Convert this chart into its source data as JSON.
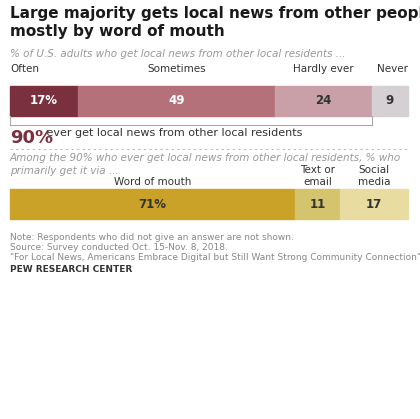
{
  "title": "Large majority gets local news from other people,\nmostly by word of mouth",
  "subtitle": "% of U.S. adults who get local news from other local residents ...",
  "bar1_labels": [
    "Often",
    "Sometimes",
    "Hardly ever",
    "Never"
  ],
  "bar1_values": [
    17,
    49,
    24,
    9
  ],
  "bar1_colors": [
    "#7b3040",
    "#b5717a",
    "#c9a0a8",
    "#d4d0d4"
  ],
  "bar2_labels": [
    "Word of mouth",
    "Text or\nemail",
    "Social\nmedia"
  ],
  "bar2_values": [
    71,
    11,
    17
  ],
  "bar2_colors": [
    "#c9a227",
    "#d4c46e",
    "#e8dca0"
  ],
  "highlight_pct": "90%",
  "highlight_text": " ever get local news from other local residents",
  "subtitle2": "Among the 90% who ever get local news from other local residents, % who\nprimarily get it via ...",
  "note1": "Note: Respondents who did not give an answer are not shown.",
  "note2": "Source: Survey conducted Oct. 15-Nov. 8, 2018.",
  "note3": "\"For Local News, Americans Embrace Digital but Still Want Strong Community Connection\"",
  "source_bold": "PEW RESEARCH CENTER",
  "bg_color": "#ffffff"
}
